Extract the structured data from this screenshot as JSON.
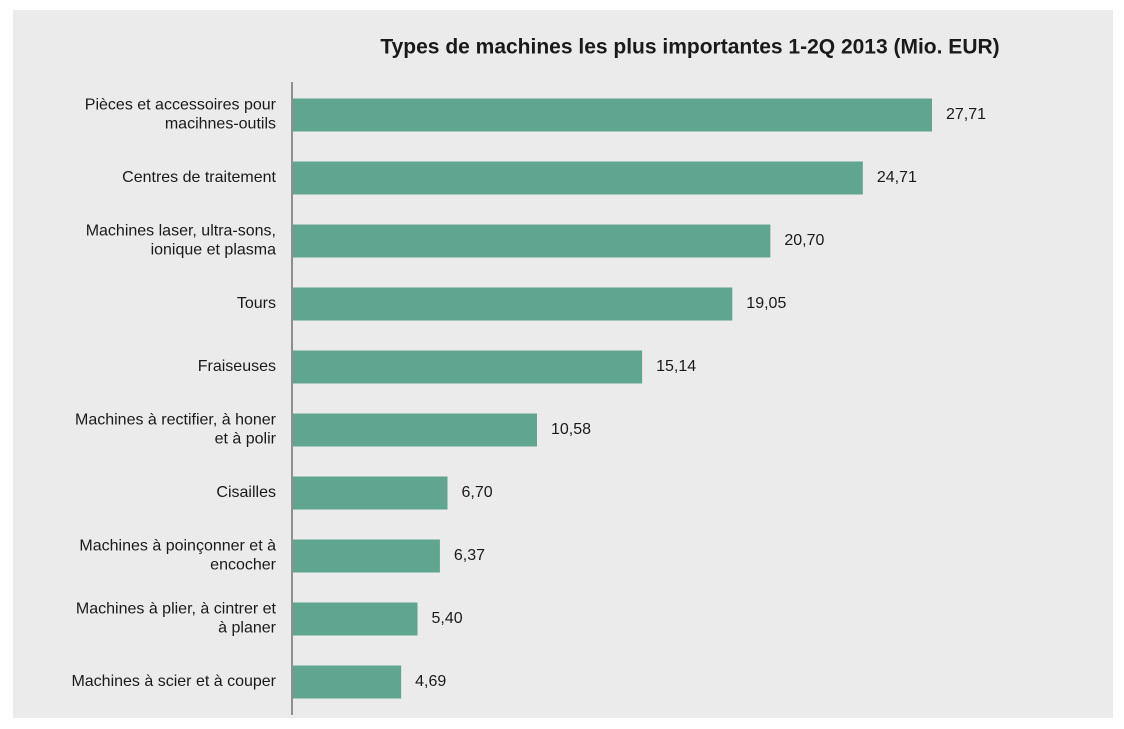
{
  "chart_data": {
    "type": "bar",
    "orientation": "horizontal",
    "title": "Types de machines les plus importantes 1-2Q 2013 (Mio. EUR)",
    "categories": [
      "Pièces et accessoires pour\nmacihnes-outils",
      "Centres de traitement",
      "Machines laser, ultra-sons,\nionique et plasma",
      "Tours",
      "Fraiseuses",
      "Machines à rectifier, à honer\net à polir",
      "Cisailles",
      "Machines à poinçonner et à\nencocher",
      "Machines à plier, à cintrer et\nà planer",
      "Machines à scier et à couper"
    ],
    "values": [
      27.71,
      24.71,
      20.7,
      19.05,
      15.14,
      10.58,
      6.7,
      6.37,
      5.4,
      4.69
    ],
    "value_labels": [
      "27,71",
      "24,71",
      "20,70",
      "19,05",
      "15,14",
      "10,58",
      "6,70",
      "6,37",
      "5,40",
      "4,69"
    ],
    "color": "#5fa590"
  }
}
